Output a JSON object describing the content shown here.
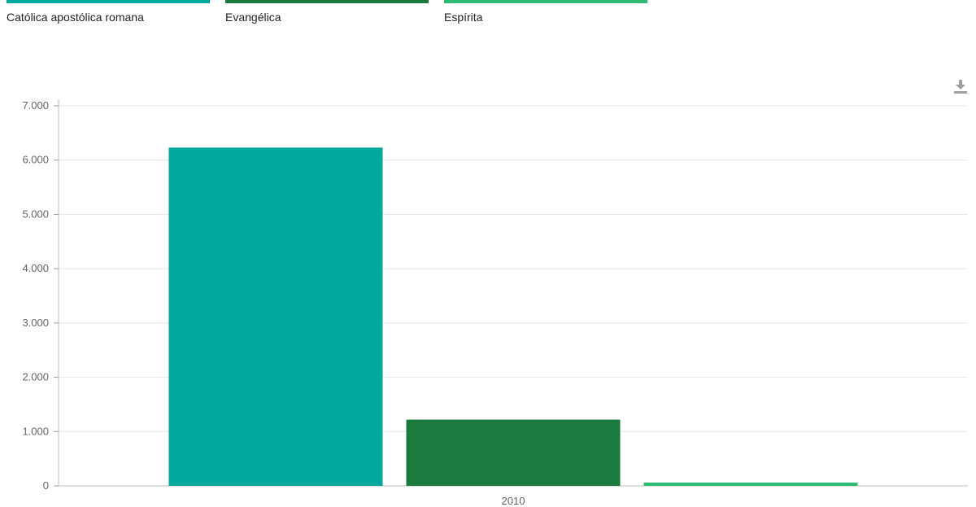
{
  "legend": [
    {
      "label": "Católica apostólica romana",
      "color": "#00a99d"
    },
    {
      "label": "Evangélica",
      "color": "#1b7a3e"
    },
    {
      "label": "Espírita",
      "color": "#2dbb72"
    }
  ],
  "toolbar": {
    "download_icon": "download-icon"
  },
  "chart_data": {
    "type": "bar",
    "categories": [
      "2010"
    ],
    "series": [
      {
        "name": "Católica apostólica romana",
        "values": [
          6230
        ],
        "color": "#00a99d"
      },
      {
        "name": "Evangélica",
        "values": [
          1220
        ],
        "color": "#1b7a3e"
      },
      {
        "name": "Espírita",
        "values": [
          60
        ],
        "color": "#2dbb72"
      }
    ],
    "ylim": [
      0,
      7000
    ],
    "yticks": [
      0,
      1000,
      2000,
      3000,
      4000,
      5000,
      6000,
      7000
    ],
    "ytick_labels": [
      "0",
      "1.000",
      "2.000",
      "3.000",
      "4.000",
      "5.000",
      "6.000",
      "7.000"
    ],
    "xtick_labels": [
      "2010"
    ],
    "grid": true,
    "legend_position": "top-left"
  }
}
